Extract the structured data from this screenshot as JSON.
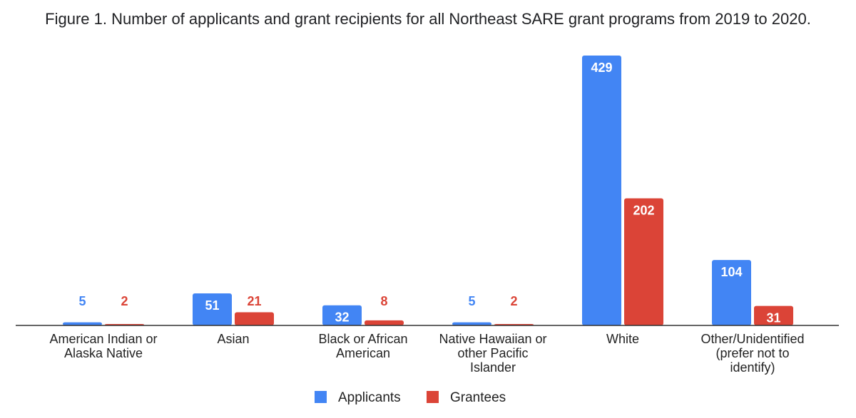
{
  "chart_data": {
    "type": "bar",
    "title": "Figure 1. Number of applicants and grant recipients for all Northeast SARE grant programs from 2019 to 2020.",
    "xlabel": "",
    "ylabel": "",
    "categories": [
      [
        "American Indian or",
        "Alaska Native"
      ],
      [
        "Asian"
      ],
      [
        "Black or African",
        "American"
      ],
      [
        "Native Hawaiian or",
        "other Pacific",
        "Islander"
      ],
      [
        "White"
      ],
      [
        "Other/Unidentified",
        "(prefer not to",
        "identify)"
      ]
    ],
    "series": [
      {
        "name": "Applicants",
        "color": "#4285f4",
        "values": [
          5,
          51,
          32,
          5,
          429,
          104
        ]
      },
      {
        "name": "Grantees",
        "color": "#db4437",
        "values": [
          2,
          21,
          8,
          2,
          202,
          31
        ]
      }
    ],
    "ylim": [
      0,
      429
    ],
    "grid": false,
    "legend": "bottom-center",
    "data_labels": true
  }
}
